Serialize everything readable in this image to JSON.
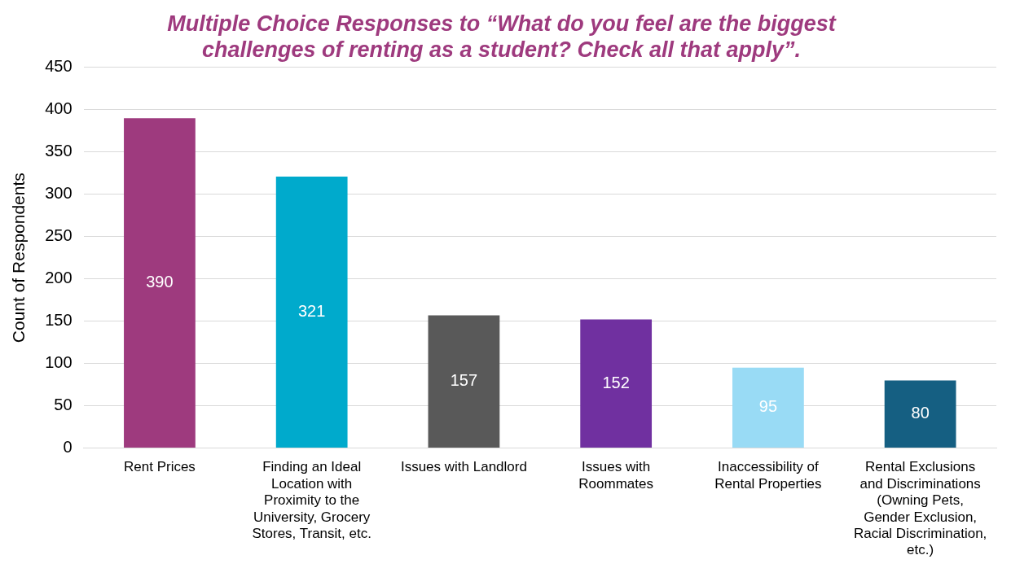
{
  "chart_data": {
    "type": "bar",
    "title": "Multiple Choice Responses to “What do you feel are the biggest challenges of renting as a student? Check all that apply”.",
    "ylabel": "Count of Respondents",
    "categories": [
      "Rent Prices",
      "Finding an Ideal Location with Proximity to the University, Grocery Stores, Transit, etc.",
      "Issues with Landlord",
      "Issues with Roommates",
      "Inaccessibility of Rental Properties",
      "Rental Exclusions and Discriminations (Owning Pets, Gender Exclusion, Racial Discrimination, etc.)"
    ],
    "values": [
      390,
      321,
      157,
      152,
      95,
      80
    ],
    "colors": [
      "#9e3a7e",
      "#00aacc",
      "#595959",
      "#7030a0",
      "#99dbf5",
      "#155f82"
    ],
    "ylim": [
      0,
      450
    ],
    "yticks": [
      0,
      50,
      100,
      150,
      200,
      250,
      300,
      350,
      400,
      450
    ],
    "grid": "y",
    "data_labels": true,
    "legend": false
  }
}
